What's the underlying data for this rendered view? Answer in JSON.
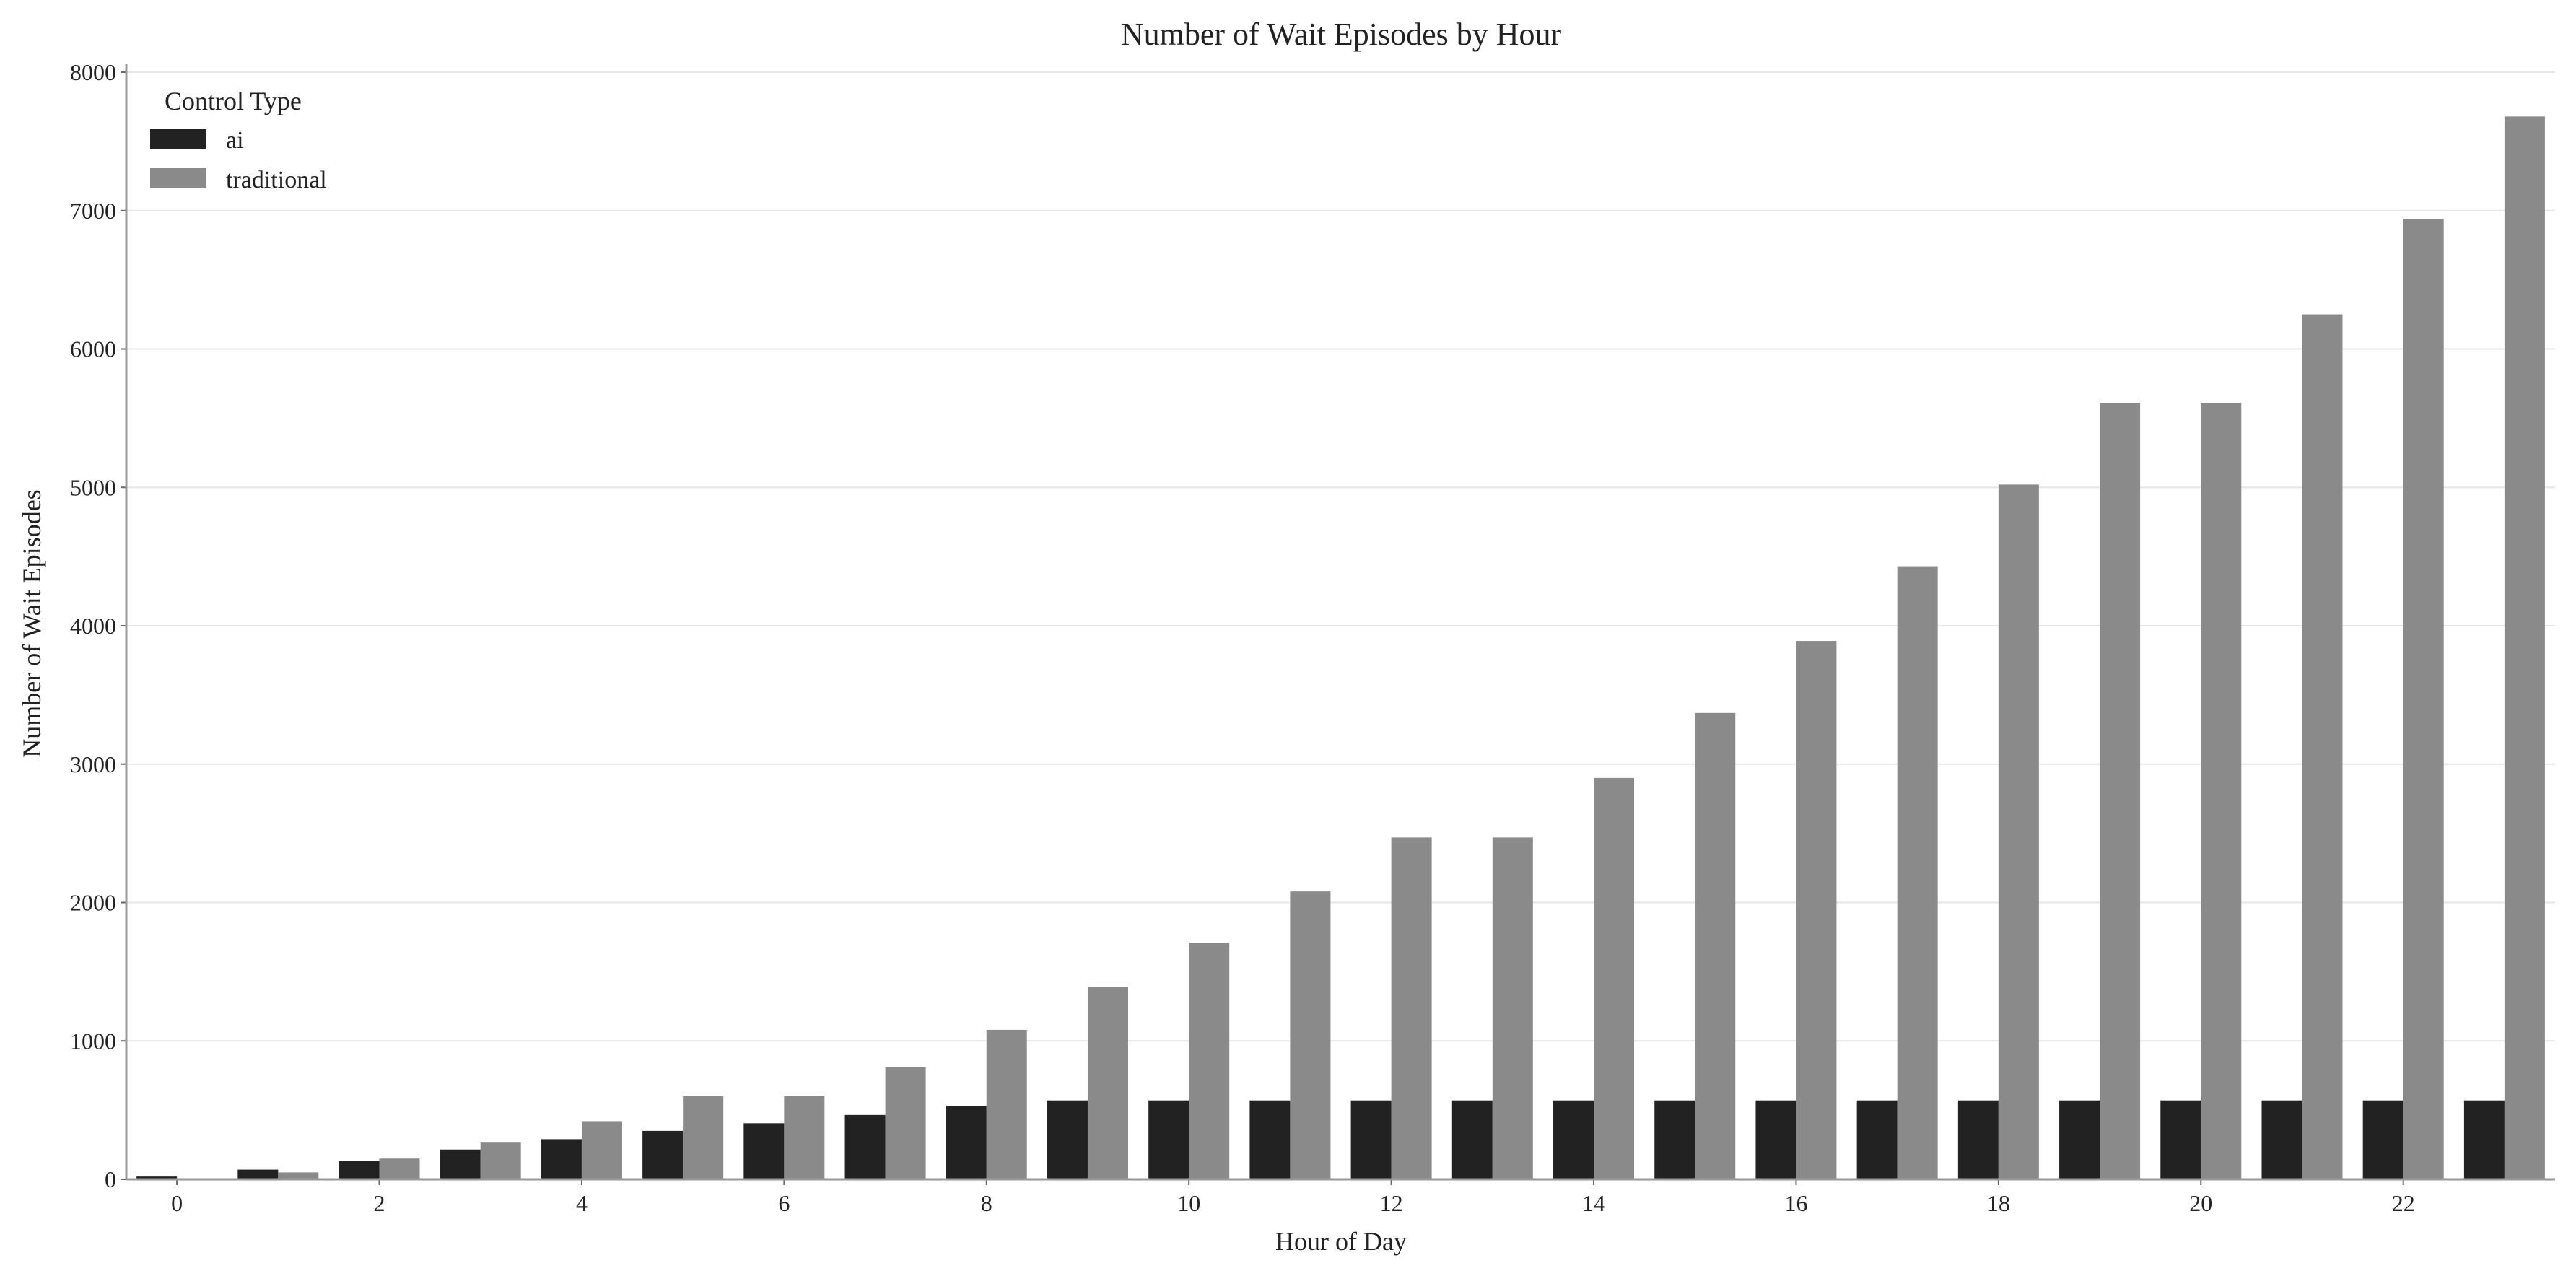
{
  "chart_data": {
    "type": "bar",
    "title": "Number of Wait Episodes by Hour",
    "xlabel": "Hour of Day",
    "ylabel": "Number of Wait Episodes",
    "categories": [
      0,
      1,
      2,
      3,
      4,
      5,
      6,
      7,
      8,
      9,
      10,
      11,
      12,
      13,
      14,
      15,
      16,
      17,
      18,
      19,
      20,
      21,
      22,
      23
    ],
    "x_tick_labels": [
      "0",
      "2",
      "4",
      "6",
      "8",
      "10",
      "12",
      "14",
      "16",
      "18",
      "20",
      "22"
    ],
    "y_tick_labels": [
      "0",
      "1000",
      "2000",
      "3000",
      "4000",
      "5000",
      "6000",
      "7000",
      "8000"
    ],
    "ylim": [
      0,
      8000
    ],
    "grid": "horizontal",
    "legend": {
      "title": "Control Type",
      "placement": "top-left"
    },
    "series": [
      {
        "name": "ai",
        "color": "#222222",
        "values": [
          20,
          70,
          135,
          215,
          290,
          350,
          405,
          465,
          530,
          570,
          570,
          570,
          570,
          570,
          570,
          570,
          570,
          570,
          570,
          570,
          570,
          570,
          570,
          570
        ]
      },
      {
        "name": "traditional",
        "color": "#8a8a8a",
        "values": [
          5,
          50,
          150,
          265,
          420,
          600,
          600,
          810,
          1080,
          1390,
          1710,
          2080,
          2470,
          2470,
          2900,
          3370,
          3890,
          4430,
          5020,
          5610,
          5610,
          6250,
          6940,
          7680
        ]
      }
    ]
  }
}
